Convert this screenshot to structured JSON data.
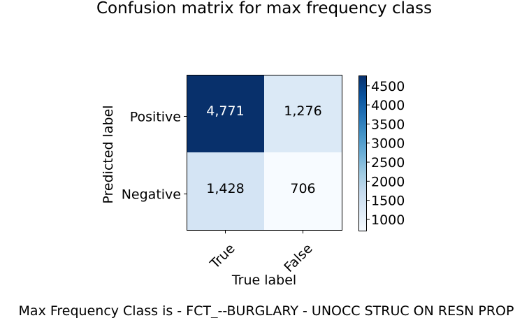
{
  "chart_data": {
    "type": "heatmap",
    "title": "Confusion matrix for max frequency class",
    "xlabel": "True label",
    "ylabel": "Predicted label",
    "x_categories": [
      "True",
      "False"
    ],
    "y_categories": [
      "Positive",
      "Negative"
    ],
    "matrix": [
      [
        4771,
        1276
      ],
      [
        1428,
        706
      ]
    ],
    "cell_labels": [
      [
        "4,771",
        "1,276"
      ],
      [
        "1,428",
        "706"
      ]
    ],
    "colormap": "Blues",
    "color_range": [
      706,
      4771
    ],
    "colorbar_ticks": [
      1000,
      1500,
      2000,
      2500,
      3000,
      3500,
      4000,
      4500
    ],
    "colorbar_tick_labels": [
      "1000",
      "1500",
      "2000",
      "2500",
      "3000",
      "3500",
      "4000",
      "4500"
    ],
    "grid": false,
    "caption": "Max Frequency Class is - FCT_--BURGLARY - UNOCC STRUC ON RESN PROP"
  }
}
